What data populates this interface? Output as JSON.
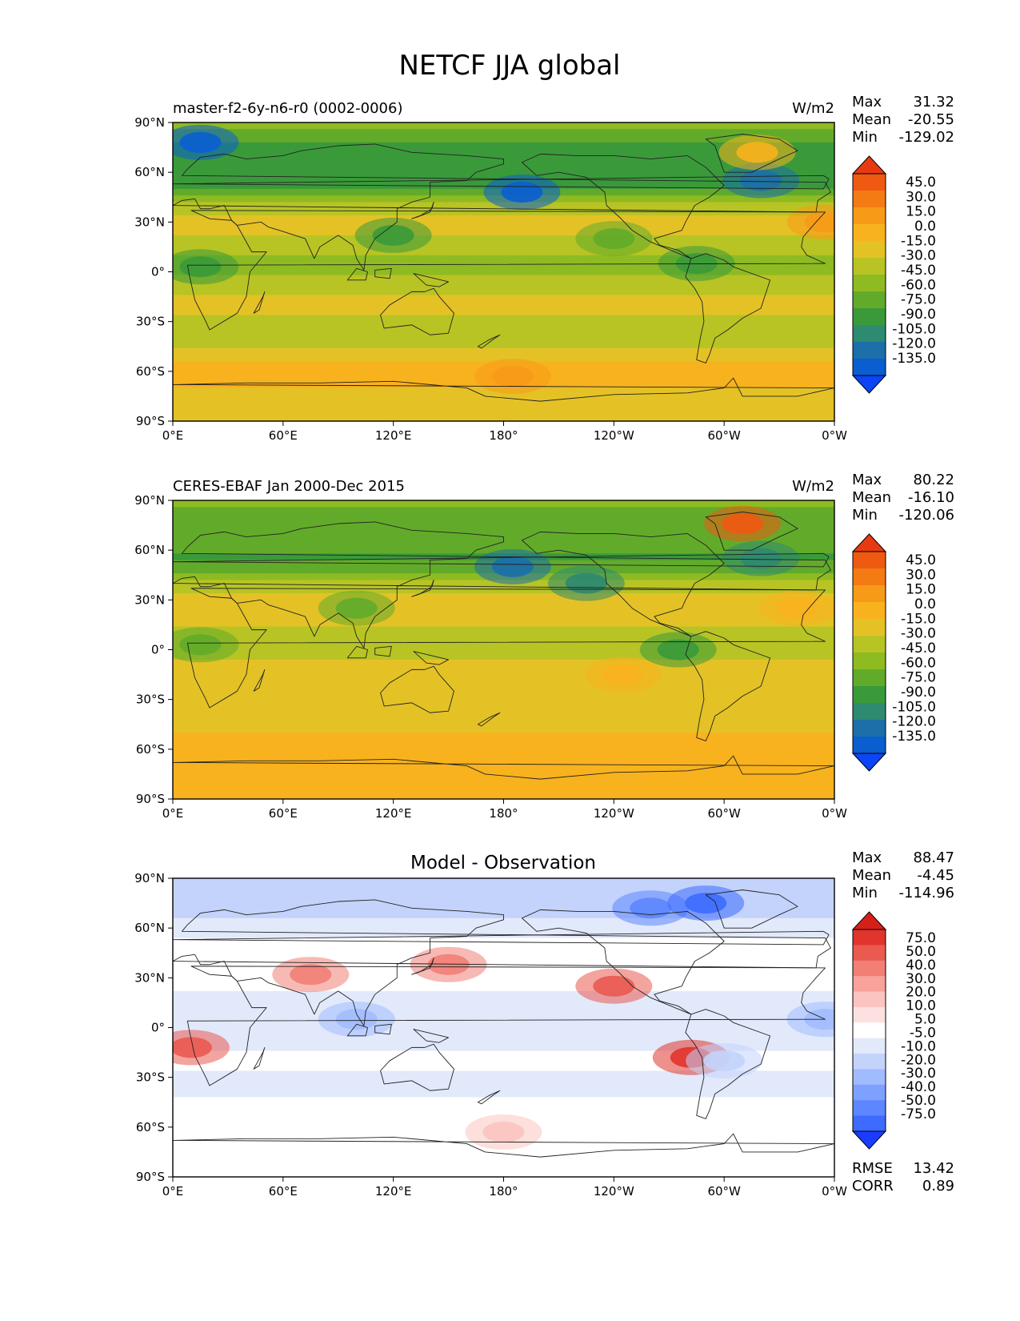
{
  "figure": {
    "title": "NETCF JJA global"
  },
  "colors": {
    "panel_scale": [
      "#0b45f5",
      "#0a5ed0",
      "#1c6fa8",
      "#2e8a70",
      "#3a9a3a",
      "#62ab2a",
      "#8fbb22",
      "#b8c424",
      "#e4c226",
      "#f8b21e",
      "#f79a18",
      "#f47a14",
      "#ee5a12",
      "#e83a10"
    ],
    "diff_scale": [
      "#1a3cff",
      "#3d6bff",
      "#5d86ff",
      "#7ea0ff",
      "#a1bbff",
      "#c3d3fb",
      "#e2e9fb",
      "#ffffff",
      "#fde1e0",
      "#fbc4c0",
      "#f7a29b",
      "#f17f76",
      "#ea5a51",
      "#e0342c",
      "#d71f1a"
    ],
    "coastline": "#222222"
  },
  "chart_data": [
    {
      "type": "heatmap",
      "panel": "model",
      "title": "master-f2-6y-n6-r0 (0002-0006)",
      "units": "W/m2",
      "stats": {
        "max_label": "Max",
        "max": "31.32",
        "mean_label": "Mean",
        "mean": "-20.55",
        "min_label": "Min",
        "min": "-129.02"
      },
      "colorbar_levels": [
        "45.0",
        "30.0",
        "15.0",
        "0.0",
        "-15.0",
        "-30.0",
        "-45.0",
        "-60.0",
        "-75.0",
        "-90.0",
        "-105.0",
        "-120.0",
        "-135.0"
      ],
      "xticks": [
        "0°E",
        "60°E",
        "120°E",
        "180°",
        "120°W",
        "60°W",
        "0°W"
      ],
      "yticks": [
        "90°N",
        "60°N",
        "30°N",
        "0°",
        "30°S",
        "60°S",
        "90°S"
      ],
      "xlim": [
        0,
        360
      ],
      "ylim": [
        -90,
        90
      ],
      "zonal_mean_profile": [
        {
          "lat": 85,
          "value": -45
        },
        {
          "lat": 75,
          "value": -70
        },
        {
          "lat": 65,
          "value": -60
        },
        {
          "lat": 55,
          "value": -75
        },
        {
          "lat": 45,
          "value": -35
        },
        {
          "lat": 35,
          "value": -15
        },
        {
          "lat": 25,
          "value": -12
        },
        {
          "lat": 15,
          "value": -25
        },
        {
          "lat": 5,
          "value": -40
        },
        {
          "lat": -5,
          "value": -25
        },
        {
          "lat": -15,
          "value": -15
        },
        {
          "lat": -25,
          "value": -15
        },
        {
          "lat": -35,
          "value": -25
        },
        {
          "lat": -45,
          "value": -15
        },
        {
          "lat": -55,
          "value": 5
        },
        {
          "lat": -65,
          "value": 5
        },
        {
          "lat": -75,
          "value": -10
        },
        {
          "lat": -85,
          "value": -5
        }
      ],
      "features": [
        {
          "lon": 190,
          "lat": 48,
          "value": -110
        },
        {
          "lon": 320,
          "lat": 55,
          "value": -95
        },
        {
          "lon": 15,
          "lat": 78,
          "value": -110
        },
        {
          "lon": 318,
          "lat": 72,
          "value": 10
        },
        {
          "lon": 120,
          "lat": 22,
          "value": -70
        },
        {
          "lon": 15,
          "lat": 3,
          "value": -75
        },
        {
          "lon": 285,
          "lat": 5,
          "value": -70
        },
        {
          "lon": 240,
          "lat": 20,
          "value": -55
        },
        {
          "lon": 355,
          "lat": 30,
          "value": 15
        },
        {
          "lon": 185,
          "lat": -63,
          "value": 25
        }
      ]
    },
    {
      "type": "heatmap",
      "panel": "observation",
      "title": "CERES-EBAF Jan 2000-Dec 2015",
      "units": "W/m2",
      "stats": {
        "max_label": "Max",
        "max": "80.22",
        "mean_label": "Mean",
        "mean": "-16.10",
        "min_label": "Min",
        "min": "-120.06"
      },
      "colorbar_levels": [
        "45.0",
        "30.0",
        "15.0",
        "0.0",
        "-15.0",
        "-30.0",
        "-45.0",
        "-60.0",
        "-75.0",
        "-90.0",
        "-105.0",
        "-120.0",
        "-135.0"
      ],
      "xticks": [
        "0°E",
        "60°E",
        "120°E",
        "180°",
        "120°W",
        "60°W",
        "0°W"
      ],
      "yticks": [
        "90°N",
        "60°N",
        "30°N",
        "0°",
        "30°S",
        "60°S",
        "90°S"
      ],
      "xlim": [
        0,
        360
      ],
      "ylim": [
        -90,
        90
      ],
      "zonal_mean_profile": [
        {
          "lat": 85,
          "value": -45
        },
        {
          "lat": 75,
          "value": -60
        },
        {
          "lat": 65,
          "value": -55
        },
        {
          "lat": 55,
          "value": -65
        },
        {
          "lat": 45,
          "value": -40
        },
        {
          "lat": 35,
          "value": -15
        },
        {
          "lat": 25,
          "value": -5
        },
        {
          "lat": 15,
          "value": -15
        },
        {
          "lat": 5,
          "value": -30
        },
        {
          "lat": -5,
          "value": -15
        },
        {
          "lat": -15,
          "value": -10
        },
        {
          "lat": -25,
          "value": -10
        },
        {
          "lat": -35,
          "value": -15
        },
        {
          "lat": -45,
          "value": -10
        },
        {
          "lat": -55,
          "value": 5
        },
        {
          "lat": -65,
          "value": 10
        },
        {
          "lat": -75,
          "value": 0
        },
        {
          "lat": -85,
          "value": 5
        }
      ],
      "features": [
        {
          "lon": 185,
          "lat": 50,
          "value": -100
        },
        {
          "lon": 225,
          "lat": 40,
          "value": -85
        },
        {
          "lon": 320,
          "lat": 55,
          "value": -90
        },
        {
          "lon": 310,
          "lat": 76,
          "value": 45
        },
        {
          "lon": 100,
          "lat": 25,
          "value": -60
        },
        {
          "lon": 275,
          "lat": 0,
          "value": -65
        },
        {
          "lon": 15,
          "lat": 3,
          "value": -60
        },
        {
          "lon": 340,
          "lat": 25,
          "value": 10
        },
        {
          "lon": 245,
          "lat": -15,
          "value": 0
        }
      ]
    },
    {
      "type": "heatmap",
      "panel": "difference",
      "title": "Model - Observation",
      "stats": {
        "max_label": "Max",
        "max": "88.47",
        "mean_label": "Mean",
        "mean": "-4.45",
        "min_label": "Min",
        "min": "-114.96",
        "rmse_label": "RMSE",
        "rmse": "13.42",
        "corr_label": "CORR",
        "corr": "0.89"
      },
      "colorbar_levels": [
        "75.0",
        "50.0",
        "40.0",
        "30.0",
        "20.0",
        "10.0",
        "5.0",
        "-5.0",
        "-10.0",
        "-20.0",
        "-30.0",
        "-40.0",
        "-50.0",
        "-75.0"
      ],
      "xticks": [
        "0°E",
        "60°E",
        "120°E",
        "180°",
        "120°W",
        "60°W",
        "0°W"
      ],
      "yticks": [
        "90°N",
        "60°N",
        "30°N",
        "0°",
        "30°S",
        "60°S",
        "90°S"
      ],
      "xlim": [
        0,
        360
      ],
      "ylim": [
        -90,
        90
      ],
      "zonal_mean_profile": [
        {
          "lat": 85,
          "value": -20
        },
        {
          "lat": 75,
          "value": -20
        },
        {
          "lat": 65,
          "value": -8
        },
        {
          "lat": 55,
          "value": -5
        },
        {
          "lat": 45,
          "value": 0
        },
        {
          "lat": 35,
          "value": -3
        },
        {
          "lat": 25,
          "value": -3
        },
        {
          "lat": 15,
          "value": -8
        },
        {
          "lat": 5,
          "value": -10
        },
        {
          "lat": -5,
          "value": -10
        },
        {
          "lat": -15,
          "value": -5
        },
        {
          "lat": -25,
          "value": -4
        },
        {
          "lat": -35,
          "value": -8
        },
        {
          "lat": -45,
          "value": -3
        },
        {
          "lat": -55,
          "value": 0
        },
        {
          "lat": -65,
          "value": 3
        },
        {
          "lat": -75,
          "value": 0
        },
        {
          "lat": -85,
          "value": 0
        }
      ],
      "features": [
        {
          "lon": 240,
          "lat": 25,
          "value": 45
        },
        {
          "lon": 282,
          "lat": -18,
          "value": 50
        },
        {
          "lon": 10,
          "lat": -12,
          "value": 40
        },
        {
          "lon": 150,
          "lat": 38,
          "value": 30
        },
        {
          "lon": 75,
          "lat": 32,
          "value": 30
        },
        {
          "lon": 180,
          "lat": -63,
          "value": 10
        },
        {
          "lon": 260,
          "lat": 72,
          "value": -45
        },
        {
          "lon": 290,
          "lat": 75,
          "value": -60
        },
        {
          "lon": 355,
          "lat": 5,
          "value": -25
        },
        {
          "lon": 100,
          "lat": 5,
          "value": -25
        },
        {
          "lon": 300,
          "lat": -20,
          "value": -15
        }
      ]
    }
  ]
}
